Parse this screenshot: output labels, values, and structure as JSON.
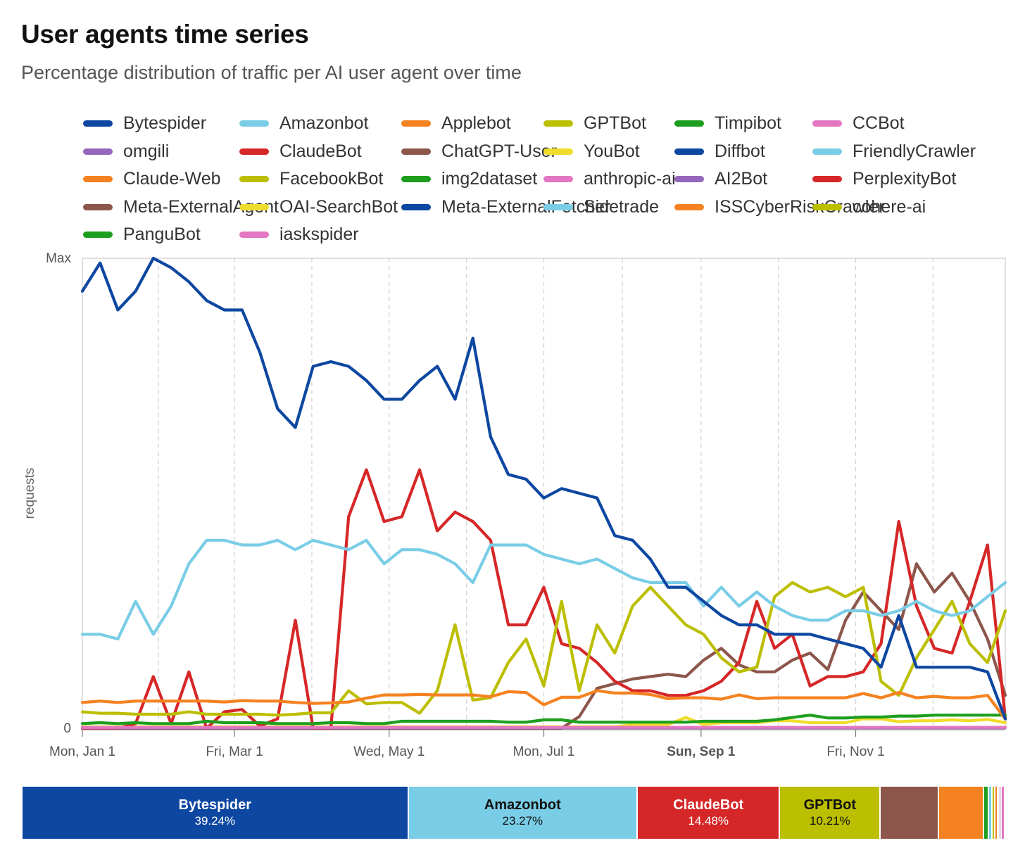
{
  "chart_data": {
    "type": "line",
    "title": "User agents time series",
    "subtitle": "Percentage distribution of traffic per AI user agent over time",
    "ylabel": "requests",
    "y_ticks": [
      "Max",
      "0"
    ],
    "ylim": [
      0,
      100
    ],
    "x_ticks": [
      {
        "label": "Mon, Jan 1",
        "date": "2024-01-01",
        "bold": false
      },
      {
        "label": "Fri, Mar 1",
        "date": "2024-03-01",
        "bold": false
      },
      {
        "label": "Wed, May 1",
        "date": "2024-05-01",
        "bold": false
      },
      {
        "label": "Mon, Jul 1",
        "date": "2024-07-01",
        "bold": false
      },
      {
        "label": "Sun, Sep 1",
        "date": "2024-09-01",
        "bold": true
      },
      {
        "label": "Fri, Nov 1",
        "date": "2024-11-01",
        "bold": false
      }
    ],
    "x_start": "2024-01-01",
    "x_end": "2024-12-30",
    "x_dates": [
      "2024-01-01",
      "2024-01-08",
      "2024-01-15",
      "2024-01-22",
      "2024-01-29",
      "2024-02-05",
      "2024-02-12",
      "2024-02-19",
      "2024-02-26",
      "2024-03-04",
      "2024-03-11",
      "2024-03-18",
      "2024-03-25",
      "2024-04-01",
      "2024-04-08",
      "2024-04-15",
      "2024-04-22",
      "2024-04-29",
      "2024-05-06",
      "2024-05-13",
      "2024-05-20",
      "2024-05-27",
      "2024-06-03",
      "2024-06-10",
      "2024-06-17",
      "2024-06-24",
      "2024-07-01",
      "2024-07-08",
      "2024-07-15",
      "2024-07-22",
      "2024-07-29",
      "2024-08-05",
      "2024-08-12",
      "2024-08-19",
      "2024-08-26",
      "2024-09-02",
      "2024-09-09",
      "2024-09-16",
      "2024-09-23",
      "2024-09-30",
      "2024-10-07",
      "2024-10-14",
      "2024-10-21",
      "2024-10-28",
      "2024-11-04",
      "2024-11-11",
      "2024-11-18",
      "2024-11-25",
      "2024-12-02",
      "2024-12-09",
      "2024-12-16",
      "2024-12-23",
      "2024-12-30"
    ],
    "grid": "vertical dashed",
    "legend_position": "top",
    "series": [
      {
        "name": "Bytespider",
        "color": "#0d47a1",
        "values": [
          93,
          99,
          89,
          93,
          100,
          98,
          95,
          91,
          89,
          89,
          80,
          68,
          64,
          77,
          78,
          77,
          74,
          70,
          70,
          74,
          77,
          70,
          83,
          62,
          54,
          53,
          49,
          51,
          50,
          49,
          41,
          40,
          36,
          30,
          30,
          27,
          24,
          22,
          22,
          20,
          20,
          20,
          19,
          18,
          17,
          13,
          24,
          13,
          13,
          13,
          13,
          12,
          2
        ]
      },
      {
        "name": "Amazonbot",
        "color": "#7acde6",
        "values": [
          20,
          20,
          19,
          27,
          20,
          26,
          35,
          40,
          40,
          39,
          39,
          40,
          38,
          40,
          39,
          38,
          40,
          35,
          38,
          38,
          37,
          35,
          31,
          39,
          39,
          39,
          37,
          36,
          35,
          36,
          34,
          32,
          31,
          31,
          31,
          26,
          30,
          26,
          29,
          26,
          24,
          23,
          23,
          25,
          25,
          24,
          25,
          27,
          25,
          24,
          25,
          28,
          31
        ]
      },
      {
        "name": "Applebot",
        "color": "#f58220",
        "values": [
          5.5,
          5.8,
          5.5,
          5.8,
          5.8,
          5.8,
          5.8,
          5.8,
          5.6,
          5.9,
          5.8,
          5.8,
          5.5,
          5.3,
          5.4,
          5.6,
          6.4,
          7.1,
          7.1,
          7.2,
          7.1,
          7.1,
          7.1,
          6.7,
          7.8,
          7.6,
          5.0,
          6.6,
          6.6,
          8.0,
          7.5,
          7.5,
          7.2,
          6.3,
          6.5,
          6.5,
          6.2,
          7.1,
          6.3,
          6.5,
          6.5,
          6.5,
          6.5,
          6.5,
          7.4,
          6.5,
          7.6,
          6.5,
          6.8,
          6.5,
          6.5,
          7.0,
          2
        ]
      },
      {
        "name": "GPTBot",
        "color": "#bcbe00",
        "values": [
          3.5,
          3.2,
          3.2,
          3.0,
          3.0,
          3.0,
          3.5,
          3.0,
          3.0,
          3.0,
          3.0,
          2.8,
          3.0,
          3.3,
          3.3,
          8,
          5.2,
          5.5,
          5.5,
          3.2,
          8,
          22,
          6,
          6.5,
          14,
          19,
          9,
          27,
          8,
          22,
          16,
          26,
          30,
          26,
          22,
          20,
          15,
          12,
          13,
          28,
          31,
          29,
          30,
          28,
          30,
          10,
          7,
          15,
          21,
          27,
          18,
          14,
          25
        ]
      },
      {
        "name": "Timpibot",
        "color": "#1e9e1e",
        "values": [
          1,
          1.2,
          1,
          1.2,
          1,
          1,
          1,
          1.5,
          1.2,
          1.2,
          1.2,
          1,
          1,
          1,
          1.2,
          1.2,
          1,
          1,
          1.5,
          1.5,
          1.5,
          1.5,
          1.5,
          1.5,
          1.3,
          1.3,
          1.8,
          1.8,
          1.3,
          1.3,
          1.3,
          1.3,
          1.3,
          1.3,
          1.3,
          1.5,
          1.5,
          1.5,
          1.5,
          1.8,
          2.3,
          2.8,
          2.2,
          2.2,
          2.4,
          2.4,
          2.6,
          2.6,
          2.8,
          2.8,
          2.8,
          2.8,
          2.8
        ]
      },
      {
        "name": "CCBot",
        "color": "#e377c2",
        "values": [
          0.2,
          0.2,
          0.2,
          0.2,
          0.2,
          0.2,
          0.2,
          0.2,
          0.2,
          0.2,
          0.2,
          0.2,
          0.2,
          0.2,
          0.2,
          0.2,
          0.2,
          0.2,
          0.2,
          0.2,
          0.2,
          0.2,
          0.2,
          0.2,
          0.2,
          0.2,
          0.2,
          0.2,
          0.2,
          0.2,
          0.2,
          0.2,
          0.2,
          0.2,
          0.2,
          0.2,
          0.2,
          0.2,
          0.2,
          0.2,
          0.2,
          0.2,
          0.2,
          0.2,
          0.2,
          0.2,
          0.2,
          0.2,
          0.2,
          0.2,
          0.2,
          0.2,
          0.2
        ]
      },
      {
        "name": "omgili",
        "color": "#9467bd",
        "values": [
          0.1,
          0.1,
          0.1,
          0.1,
          0.1,
          0.1,
          0.1,
          0.1,
          0.1,
          0.1,
          0.1,
          0.1,
          0.1,
          0.1,
          0.1,
          0.1,
          0.1,
          0.1,
          0.1,
          0.1,
          0.1,
          0.1,
          0.1,
          0.1,
          0.1,
          0.1,
          0.1,
          0.1,
          0.1,
          0.1,
          0.1,
          0.1,
          0.1,
          0.1,
          0.1,
          0.1,
          0.1,
          0.1,
          0.1,
          0.1,
          0.1,
          0.1,
          0.1,
          0.1,
          0.1,
          0.1,
          0.1,
          0.1,
          0.1,
          0.1,
          0.1,
          0.1,
          0.1
        ]
      },
      {
        "name": "ClaudeBot",
        "color": "#d62728",
        "values": [
          0,
          0,
          0,
          1,
          11,
          1,
          12,
          0,
          3.5,
          4,
          0.5,
          2,
          23,
          0,
          0,
          45,
          55,
          44,
          45,
          55,
          42,
          46,
          44,
          40,
          22,
          22,
          30,
          18,
          17,
          14,
          10,
          8,
          8,
          7,
          7,
          8,
          10,
          14,
          27,
          17,
          20,
          9,
          11,
          11,
          12,
          18,
          44,
          26,
          17,
          16,
          27,
          39,
          2
        ]
      },
      {
        "name": "ChatGPT-User",
        "color": "#8c564b",
        "values": [
          0,
          0,
          0,
          0,
          0,
          0,
          0,
          0,
          0,
          0,
          0,
          0,
          0,
          0,
          0,
          0,
          0,
          0,
          0,
          0,
          0,
          0,
          0,
          0,
          0,
          0,
          0,
          0,
          2.5,
          8.5,
          9.5,
          10.5,
          11,
          11.5,
          11,
          14.5,
          17,
          13.5,
          12,
          12,
          14.5,
          16,
          12.5,
          23,
          29,
          25,
          21,
          35,
          29,
          33,
          27,
          19,
          7
        ]
      },
      {
        "name": "YouBot",
        "color": "#f0dc2c",
        "values": [
          0.3,
          0.3,
          0.3,
          0.3,
          0.3,
          0.3,
          0.3,
          0.3,
          0.3,
          0.3,
          0.3,
          0.3,
          0.3,
          0.3,
          0.3,
          0.3,
          0.3,
          0.3,
          0.3,
          0.3,
          0.3,
          0.3,
          0.3,
          0.3,
          0.3,
          0.3,
          0.3,
          0.3,
          0.3,
          0.3,
          0.3,
          0.8,
          0.8,
          0.8,
          2.3,
          0.8,
          1.2,
          1.2,
          1.2,
          1.6,
          1.6,
          1.2,
          1.2,
          1.2,
          2.0,
          2.0,
          1.4,
          1.6,
          1.6,
          1.8,
          1.6,
          1.9,
          1.2
        ]
      },
      {
        "name": "Diffbot",
        "color": "#0d47a1",
        "values": []
      },
      {
        "name": "FriendlyCrawler",
        "color": "#7acde6",
        "values": []
      },
      {
        "name": "Claude-Web",
        "color": "#f58220",
        "values": []
      },
      {
        "name": "FacebookBot",
        "color": "#bcbe00",
        "values": []
      },
      {
        "name": "img2dataset",
        "color": "#1e9e1e",
        "values": []
      },
      {
        "name": "anthropic-ai",
        "color": "#e377c2",
        "values": []
      },
      {
        "name": "AI2Bot",
        "color": "#9467bd",
        "values": []
      },
      {
        "name": "PerplexityBot",
        "color": "#d62728",
        "values": []
      },
      {
        "name": "Meta-ExternalAgent",
        "color": "#8c564b",
        "values": []
      },
      {
        "name": "OAI-SearchBot",
        "color": "#f0dc2c",
        "values": []
      },
      {
        "name": "Meta-ExternalFetcher",
        "color": "#0d47a1",
        "values": []
      },
      {
        "name": "Sidetrade",
        "color": "#7acde6",
        "values": []
      },
      {
        "name": "ISSCyberRiskCrawler",
        "color": "#f58220",
        "values": []
      },
      {
        "name": "cohere-ai",
        "color": "#bcbe00",
        "values": []
      },
      {
        "name": "PanguBot",
        "color": "#1e9e1e",
        "values": []
      },
      {
        "name": "iaskspider",
        "color": "#e377c2",
        "values": []
      }
    ],
    "share_bar": [
      {
        "name": "Bytespider",
        "pct": "39.24%",
        "value": 39.24,
        "color": "#0d47a1",
        "text_color": "#ffffff"
      },
      {
        "name": "Amazonbot",
        "pct": "23.27%",
        "value": 23.27,
        "color": "#7acde6",
        "text_color": "#111111"
      },
      {
        "name": "ClaudeBot",
        "pct": "14.48%",
        "value": 14.48,
        "color": "#d62728",
        "text_color": "#ffffff"
      },
      {
        "name": "GPTBot",
        "pct": "10.21%",
        "value": 10.21,
        "color": "#bcbe00",
        "text_color": "#111111"
      },
      {
        "name": "",
        "pct": "",
        "value": 5.9,
        "color": "#8c564b",
        "text_color": "#ffffff"
      },
      {
        "name": "",
        "pct": "",
        "value": 4.6,
        "color": "#f58220",
        "text_color": "#ffffff"
      },
      {
        "name": "",
        "pct": "",
        "value": 0.5,
        "color": "#1e9e1e",
        "text_color": "#ffffff"
      },
      {
        "name": "",
        "pct": "",
        "value": 0.35,
        "color": "#7acde6",
        "text_color": "#ffffff"
      },
      {
        "name": "",
        "pct": "",
        "value": 0.3,
        "color": "#bcbe00",
        "text_color": "#ffffff"
      },
      {
        "name": "",
        "pct": "",
        "value": 0.25,
        "color": "#f58220",
        "text_color": "#ffffff"
      },
      {
        "name": "",
        "pct": "",
        "value": 0.2,
        "color": "#f0dc2c",
        "text_color": "#ffffff"
      },
      {
        "name": "",
        "pct": "",
        "value": 0.2,
        "color": "#9467bd",
        "text_color": "#ffffff"
      },
      {
        "name": "",
        "pct": "",
        "value": 0.2,
        "color": "#e377c2",
        "text_color": "#ffffff"
      }
    ]
  }
}
